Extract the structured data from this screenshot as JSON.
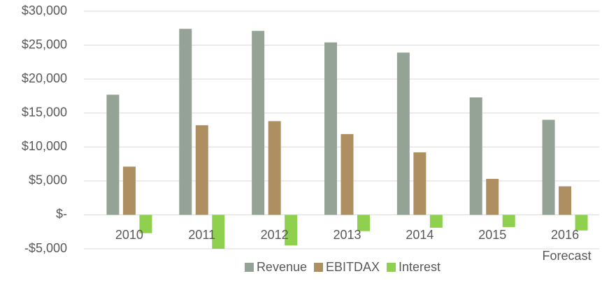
{
  "chart_data": {
    "type": "bar",
    "categories": [
      "2010",
      "2011",
      "2012",
      "2013",
      "2014",
      "2015",
      "2016 Forecast"
    ],
    "series": [
      {
        "name": "Revenue",
        "color": "#95a396",
        "values": [
          17700,
          27400,
          27100,
          25400,
          23900,
          17300,
          14000
        ]
      },
      {
        "name": "EBITDAX",
        "color": "#ad8f62",
        "values": [
          7100,
          13200,
          13800,
          11900,
          9200,
          5300,
          4200
        ]
      },
      {
        "name": "Interest",
        "color": "#8fd14f",
        "values": [
          -2700,
          -5000,
          -4500,
          -2400,
          -1900,
          -1800,
          -2300
        ]
      }
    ],
    "ylim": [
      -5000,
      30000
    ],
    "yticks": [
      {
        "value": -5000,
        "label": "-$5,000"
      },
      {
        "value": 0,
        "label": "$-"
      },
      {
        "value": 5000,
        "label": "$5,000"
      },
      {
        "value": 10000,
        "label": "$10,000"
      },
      {
        "value": 15000,
        "label": "$15,000"
      },
      {
        "value": 20000,
        "label": "$20,000"
      },
      {
        "value": 25000,
        "label": "$25,000"
      },
      {
        "value": 30000,
        "label": "$30,000"
      }
    ],
    "grid": true,
    "legend": "bottom"
  }
}
